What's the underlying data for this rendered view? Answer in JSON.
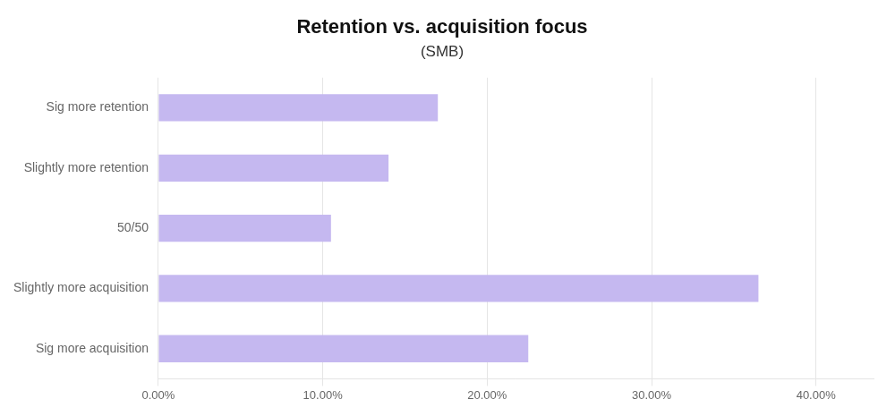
{
  "chart_data": {
    "type": "bar",
    "orientation": "horizontal",
    "title": "Retention vs. acquisition focus",
    "subtitle": "(SMB)",
    "categories": [
      "Sig more retention",
      "Slightly more retention",
      "50/50",
      "Slightly more acquisition",
      "Sig more acquisition"
    ],
    "values": [
      0.17,
      0.14,
      0.105,
      0.365,
      0.225
    ],
    "color": "#c5b8f0",
    "xlim": [
      0,
      0.435
    ],
    "xticks": [
      {
        "value": 0.0,
        "label": "0.00%"
      },
      {
        "value": 0.1,
        "label": "10.00%"
      },
      {
        "value": 0.2,
        "label": "20.00%"
      },
      {
        "value": 0.3,
        "label": "30.00%"
      },
      {
        "value": 0.4,
        "label": "40.00%"
      }
    ],
    "grid": true
  }
}
